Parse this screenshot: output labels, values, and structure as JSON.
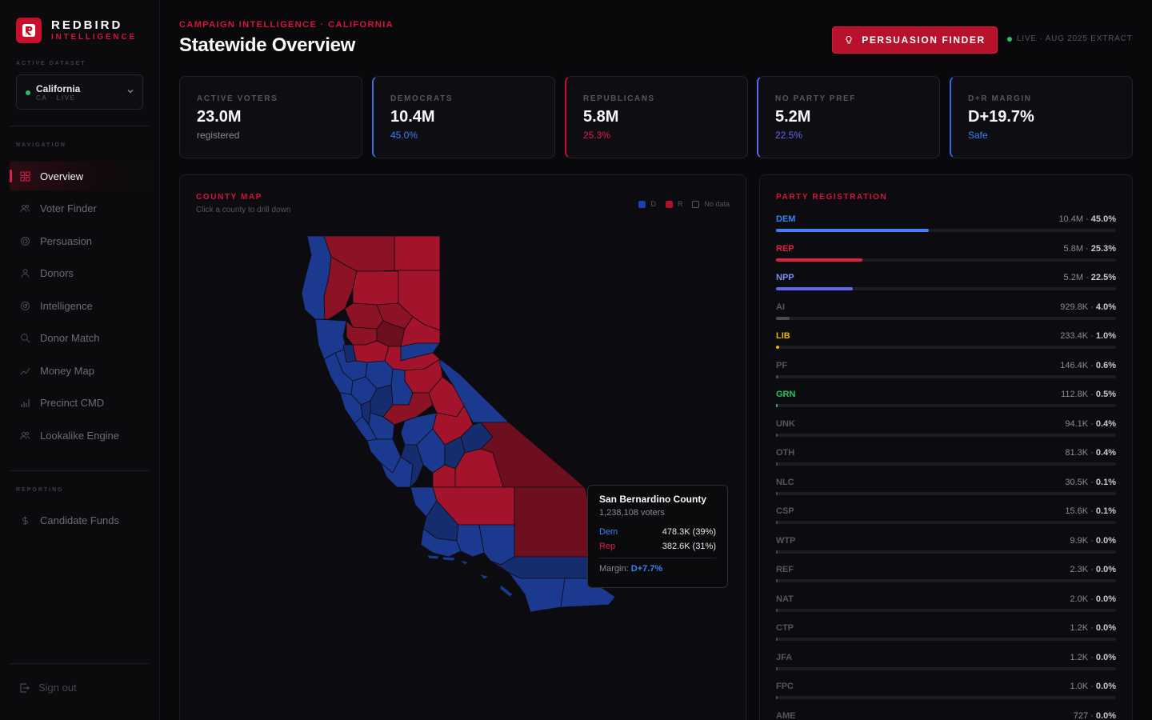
{
  "brand": {
    "name": "REDBIRD",
    "sub": "INTELLIGENCE"
  },
  "sidebar": {
    "dataset_label": "ACTIVE DATASET",
    "dataset": {
      "name": "California",
      "sub": "CA · LIVE"
    },
    "nav_label": "NAVIGATION",
    "items": [
      {
        "label": "Overview",
        "icon": "grid-icon",
        "active": true
      },
      {
        "label": "Voter Finder",
        "icon": "users-icon"
      },
      {
        "label": "Persuasion",
        "icon": "target-icon"
      },
      {
        "label": "Donors",
        "icon": "user-icon"
      },
      {
        "label": "Intelligence",
        "icon": "radar-icon"
      },
      {
        "label": "Donor Match",
        "icon": "search-icon"
      },
      {
        "label": "Money Map",
        "icon": "trend-icon"
      },
      {
        "label": "Precinct CMD",
        "icon": "bar-chart-icon"
      },
      {
        "label": "Lookalike Engine",
        "icon": "users-icon"
      }
    ],
    "reporting_label": "REPORTING",
    "reporting_items": [
      {
        "label": "Candidate Funds",
        "icon": "dollar-icon"
      }
    ],
    "signout": "Sign out"
  },
  "header": {
    "kicker": "CAMPAIGN INTELLIGENCE · CALIFORNIA",
    "title": "Statewide Overview",
    "button": "PERSUASION FINDER",
    "live": "LIVE · AUG 2025 EXTRACT"
  },
  "stats": [
    {
      "label": "ACTIVE VOTERS",
      "value": "23.0M",
      "sub": "registered",
      "sub_color": "#8a8a94"
    },
    {
      "label": "DEMOCRATS",
      "value": "10.4M",
      "sub": "45.0%",
      "sub_color": "#3b82f6"
    },
    {
      "label": "REPUBLICANS",
      "value": "5.8M",
      "sub": "25.3%",
      "sub_color": "#e11d48"
    },
    {
      "label": "NO PARTY PREF",
      "value": "5.2M",
      "sub": "22.5%",
      "sub_color": "#6366f1"
    },
    {
      "label": "D+R MARGIN",
      "value": "D+19.7%",
      "sub": "Safe",
      "sub_color": "#3b82f6"
    }
  ],
  "map": {
    "title": "COUNTY MAP",
    "subtitle": "Click a county to drill down",
    "legend": [
      {
        "label": "D",
        "color": "#1e40af"
      },
      {
        "label": "R",
        "color": "#b0102a"
      },
      {
        "label": "No data",
        "color": "none"
      }
    ],
    "colors": {
      "dem": "#1b3a8f",
      "rep": "#a3132b",
      "rep_dark": "#6d0f1f",
      "lean_rep": "#8c1226",
      "dem_dark": "#152d6e"
    },
    "tooltip": {
      "county": "San Bernardino County",
      "voters": "1,238,108 voters",
      "dem_label": "Dem",
      "dem_value": "478.3K (39%)",
      "rep_label": "Rep",
      "rep_value": "382.6K (31%)",
      "margin_label": "Margin:",
      "margin_value": "D+7.7%"
    }
  },
  "registration": {
    "title": "PARTY REGISTRATION",
    "rows": [
      {
        "code": "DEM",
        "count": "10.4M",
        "pct": "45.0%",
        "share": 0.45,
        "color": "#3b82f6",
        "code_color": "#3b82f6"
      },
      {
        "code": "REP",
        "count": "5.8M",
        "pct": "25.3%",
        "share": 0.253,
        "color": "#e11d48",
        "code_color": "#e11d48"
      },
      {
        "code": "NPP",
        "count": "5.2M",
        "pct": "22.5%",
        "share": 0.225,
        "color": "#6366f1",
        "code_color": "#818cf8"
      },
      {
        "code": "AI",
        "count": "929.8K",
        "pct": "4.0%",
        "share": 0.04,
        "color": "#4b4b58",
        "code_color": "#55555e"
      },
      {
        "code": "LIB",
        "count": "233.4K",
        "pct": "1.0%",
        "share": 0.01,
        "color": "#eab308",
        "code_color": "#eab308"
      },
      {
        "code": "PF",
        "count": "146.4K",
        "pct": "0.6%",
        "share": 0.006,
        "color": "#4b4b58",
        "code_color": "#55555e"
      },
      {
        "code": "GRN",
        "count": "112.8K",
        "pct": "0.5%",
        "share": 0.005,
        "color": "#22c55e",
        "code_color": "#22c55e"
      },
      {
        "code": "UNK",
        "count": "94.1K",
        "pct": "0.4%",
        "share": 0.004,
        "color": "#4b4b58",
        "code_color": "#55555e"
      },
      {
        "code": "OTH",
        "count": "81.3K",
        "pct": "0.4%",
        "share": 0.004,
        "color": "#4b4b58",
        "code_color": "#55555e"
      },
      {
        "code": "NLC",
        "count": "30.5K",
        "pct": "0.1%",
        "share": 0.001,
        "color": "#4b4b58",
        "code_color": "#55555e"
      },
      {
        "code": "CSP",
        "count": "15.6K",
        "pct": "0.1%",
        "share": 0.001,
        "color": "#4b4b58",
        "code_color": "#55555e"
      },
      {
        "code": "WTP",
        "count": "9.9K",
        "pct": "0.0%",
        "share": 0.0,
        "color": "#4b4b58",
        "code_color": "#55555e"
      },
      {
        "code": "REF",
        "count": "2.3K",
        "pct": "0.0%",
        "share": 0.0,
        "color": "#4b4b58",
        "code_color": "#55555e"
      },
      {
        "code": "NAT",
        "count": "2.0K",
        "pct": "0.0%",
        "share": 0.0,
        "color": "#4b4b58",
        "code_color": "#55555e"
      },
      {
        "code": "CTP",
        "count": "1.2K",
        "pct": "0.0%",
        "share": 0.0,
        "color": "#4b4b58",
        "code_color": "#55555e"
      },
      {
        "code": "JFA",
        "count": "1.2K",
        "pct": "0.0%",
        "share": 0.0,
        "color": "#4b4b58",
        "code_color": "#55555e"
      },
      {
        "code": "FPC",
        "count": "1.0K",
        "pct": "0.0%",
        "share": 0.0,
        "color": "#4b4b58",
        "code_color": "#55555e"
      },
      {
        "code": "AME",
        "count": "727",
        "pct": "0.0%",
        "share": 0.0,
        "color": "#4b4b58",
        "code_color": "#55555e"
      }
    ]
  }
}
